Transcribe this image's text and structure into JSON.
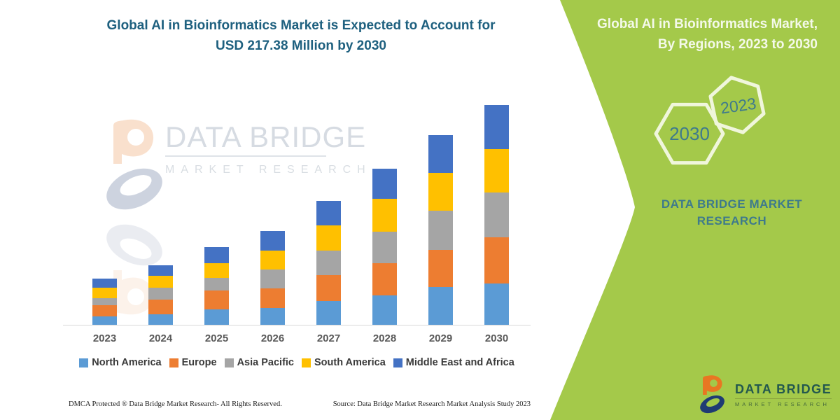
{
  "infographic": {
    "headline_line1": "Global AI in Bioinformatics Market is Expected to Account for",
    "headline_line2": "USD 217.38 Million by 2030"
  },
  "chart_data": {
    "type": "bar",
    "stacked": true,
    "unit": "USD Million",
    "annotation_total_2030": 217.38,
    "title": "Global AI in Bioinformatics Market, By Regions, 2023 to 2030",
    "categories": [
      "2023",
      "2024",
      "2025",
      "2026",
      "2027",
      "2028",
      "2029",
      "2030"
    ],
    "series": [
      {
        "name": "North America",
        "color": "#5B9BD5",
        "values": [
          8.4,
          10.6,
          15.5,
          16.9,
          23.9,
          29.5,
          37.3,
          40.8
        ]
      },
      {
        "name": "Europe",
        "color": "#ED7D31",
        "values": [
          11.3,
          14.8,
          19.0,
          19.7,
          26.0,
          32.4,
          36.6,
          45.7
        ]
      },
      {
        "name": "Asia Pacific",
        "color": "#A5A5A5",
        "values": [
          7.0,
          12.0,
          12.7,
          19.0,
          24.6,
          31.7,
          38.7,
          44.3
        ]
      },
      {
        "name": "South America",
        "color": "#FFC000",
        "values": [
          10.6,
          12.0,
          14.8,
          19.0,
          25.3,
          33.1,
          37.3,
          42.9
        ]
      },
      {
        "name": "Middle East and Africa",
        "color": "#4472C4",
        "values": [
          9.1,
          10.6,
          16.2,
          19.7,
          24.6,
          30.3,
          37.3,
          43.6
        ]
      }
    ],
    "xlabel": "",
    "ylabel": "",
    "ylim": [
      0,
      230
    ],
    "grid": false,
    "y_axis_visible": false,
    "legend_position": "bottom"
  },
  "watermark": {
    "brand": "DATA BRIDGE",
    "sub": "MARKET RESEARCH"
  },
  "footer": {
    "left": "DMCA Protected ® Data Bridge Market Research-  All Rights Reserved.",
    "right": "Source: Data Bridge Market Research  Market Analysis Study 2023"
  },
  "side_panel": {
    "background_color": "#A4C94A",
    "text_color": "#3E7A8C",
    "title_line1": "Global AI in Bioinformatics Market,",
    "title_line2": "By Regions, 2023 to 2030",
    "hexagon_labels": [
      "2030",
      "2023"
    ],
    "brand_caption": "DATA BRIDGE MARKET RESEARCH"
  },
  "logo": {
    "brand": "DATA BRIDGE",
    "sub": "MARKET RESEARCH"
  }
}
